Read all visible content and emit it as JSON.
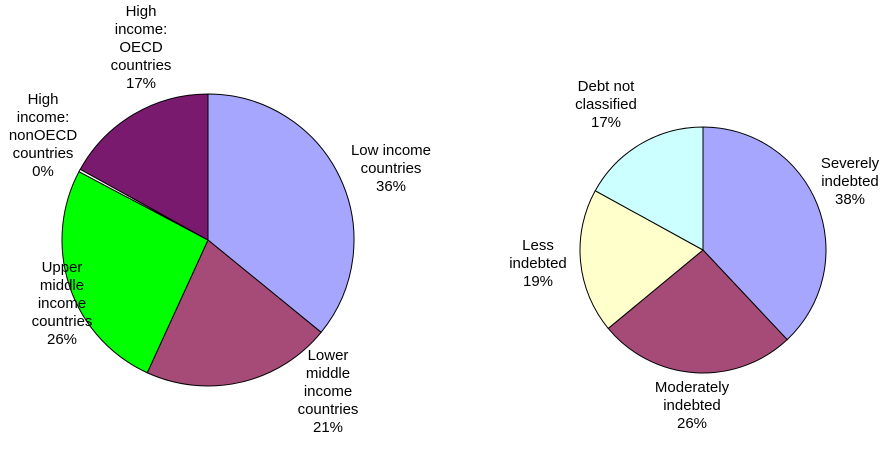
{
  "chart_data": [
    {
      "type": "pie",
      "slices": [
        {
          "label": [
            "Low income",
            "countries"
          ],
          "value": 36,
          "pct_label": "36%",
          "color": "#a6a6ff"
        },
        {
          "label": [
            "Lower",
            "middle",
            "income",
            "countries"
          ],
          "value": 21,
          "pct_label": "21%",
          "color": "#a64b77"
        },
        {
          "label": [
            "Upper",
            "middle",
            "income",
            "countries"
          ],
          "value": 26,
          "pct_label": "26%",
          "color": "#00ff00"
        },
        {
          "label": [
            "High",
            "income:",
            "nonOECD",
            "countries"
          ],
          "value": 0.3,
          "pct_label": "0%",
          "color": "#ffffff"
        },
        {
          "label": [
            "High",
            "income:",
            "OECD",
            "countries"
          ],
          "value": 17,
          "pct_label": "17%",
          "color": "#7a1a6e"
        }
      ]
    },
    {
      "type": "pie",
      "slices": [
        {
          "label": [
            "Severely",
            "indebted"
          ],
          "value": 38,
          "pct_label": "38%",
          "color": "#a6a6ff"
        },
        {
          "label": [
            "Moderately",
            "indebted"
          ],
          "value": 26,
          "pct_label": "26%",
          "color": "#a64b77"
        },
        {
          "label": [
            "Less",
            "indebted"
          ],
          "value": 19,
          "pct_label": "19%",
          "color": "#ffffcc"
        },
        {
          "label": [
            "Debt not",
            "classified"
          ],
          "value": 17,
          "pct_label": "17%",
          "color": "#ccffff"
        }
      ]
    }
  ]
}
